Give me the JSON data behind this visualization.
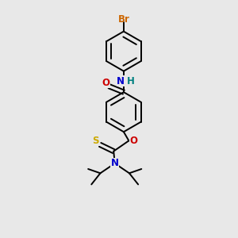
{
  "background_color": "#e8e8e8",
  "bond_color": "#000000",
  "atom_colors": {
    "Br": "#cc6600",
    "O": "#cc0000",
    "N": "#0000cc",
    "H": "#008080",
    "S": "#ccaa00",
    "C": "#000000"
  },
  "figsize": [
    3.0,
    3.0
  ],
  "dpi": 100,
  "lw": 1.4
}
